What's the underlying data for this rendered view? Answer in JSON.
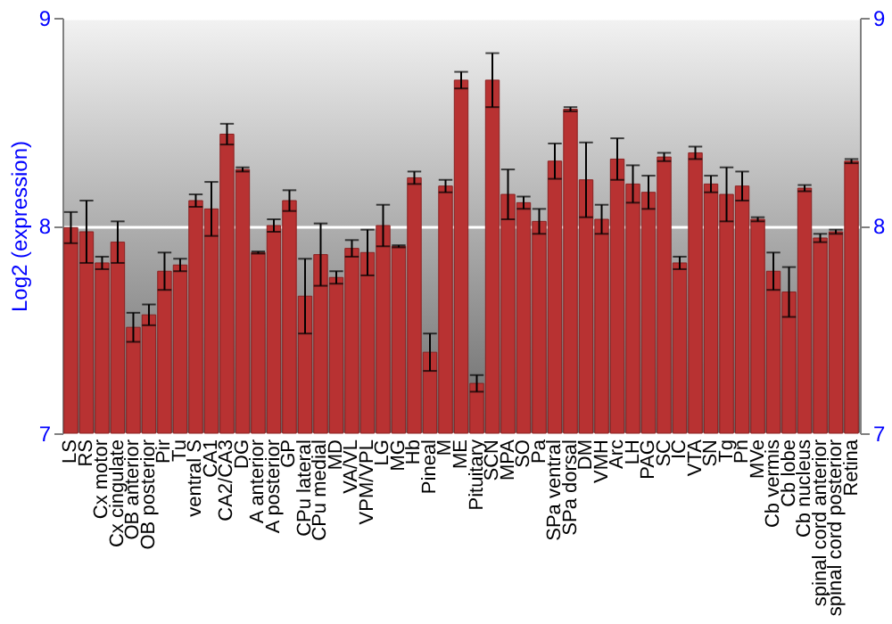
{
  "chart_data": {
    "type": "bar",
    "ylabel": "Log2 (expression)",
    "categories": [
      "LS",
      "RS",
      "Cx motor",
      "Cx cingulate",
      "OB anterior",
      "OB posterior",
      "Pir",
      "Tu",
      "ventral S",
      "CA1",
      "CA2/CA3",
      "DG",
      "A anterior",
      "A posterior",
      "GP",
      "CPu lateral",
      "CPu medial",
      "MD",
      "VA/VL",
      "VPM/VPL",
      "LG",
      "MG",
      "Hb",
      "Pineal",
      "M",
      "ME",
      "Pituitary",
      "SCN",
      "MPA",
      "SO",
      "Pa",
      "SPa ventral",
      "SPa dorsal",
      "DM",
      "VMH",
      "Arc",
      "LH",
      "PAG",
      "SC",
      "IC",
      "VTA",
      "SN",
      "Tg",
      "Pn",
      "MVe",
      "Cb vermis",
      "Cb lobe",
      "Cb nucleus",
      "spinal cord anterior",
      "spinal cord posterior",
      "Retina"
    ],
    "series": [
      {
        "color": "#b83232",
        "values": [
          7.99,
          7.97,
          7.82,
          7.92,
          7.51,
          7.57,
          7.78,
          7.81,
          8.12,
          8.08,
          8.44,
          8.27,
          7.87,
          8.0,
          8.12,
          7.66,
          7.86,
          7.75,
          7.89,
          7.87,
          8.0,
          7.9,
          8.23,
          7.39,
          8.19,
          8.7,
          7.24,
          8.7,
          8.15,
          8.11,
          8.02,
          8.31,
          8.56,
          8.22,
          8.03,
          8.32,
          8.2,
          8.16,
          8.33,
          7.82,
          8.35,
          8.2,
          8.15,
          8.19,
          8.03,
          7.78,
          7.68,
          8.18,
          7.94,
          7.97,
          8.31
        ],
        "errors": [
          0.075,
          0.15,
          0.03,
          0.1,
          0.07,
          0.05,
          0.09,
          0.03,
          0.03,
          0.13,
          0.05,
          0.01,
          0.005,
          0.03,
          0.05,
          0.18,
          0.15,
          0.03,
          0.04,
          0.11,
          0.1,
          0.005,
          0.03,
          0.09,
          0.03,
          0.04,
          0.04,
          0.13,
          0.12,
          0.03,
          0.06,
          0.085,
          0.01,
          0.18,
          0.07,
          0.1,
          0.09,
          0.08,
          0.02,
          0.03,
          0.03,
          0.04,
          0.13,
          0.07,
          0.01,
          0.09,
          0.12,
          0.015,
          0.02,
          0.01,
          0.01
        ]
      }
    ],
    "ylim": [
      7,
      9
    ],
    "yticks": [
      7,
      8,
      9
    ],
    "y2lim": [
      7,
      9
    ],
    "y2ticks": [
      7,
      8,
      9
    ],
    "grid": "y",
    "legend": false
  }
}
